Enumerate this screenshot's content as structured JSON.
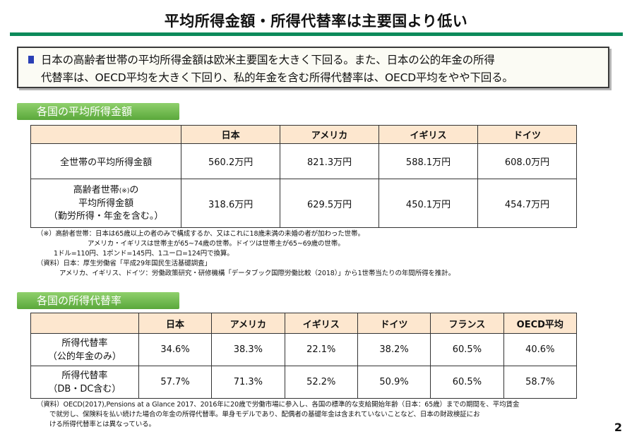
{
  "title": "平均所得金額・所得代替率は主要国より低い",
  "summary": {
    "line1": "日本の高齢者世帯の平均所得金額は欧米主要国を大きく下回る。また、日本の公的年金の所得",
    "line2": "代替率は、OECD平均を大きく下回り、私的年金を含む所得代替率は、OECD平均をやや下回る。"
  },
  "section1": {
    "label": "各国の平均所得金額",
    "columns": [
      "日本",
      "アメリカ",
      "イギリス",
      "ドイツ"
    ],
    "rows": [
      {
        "label": "全世帯の平均所得金額",
        "values": [
          "560.2万円",
          "821.3万円",
          "588.1万円",
          "608.0万円"
        ]
      },
      {
        "label_line1": "高齢者世帯",
        "label_mark": "(※)",
        "label_line1_suffix": "の",
        "label_line2": "平均所得金額",
        "label_line3": "（勤労所得・年金を含む。）",
        "values": [
          "318.6万円",
          "629.5万円",
          "450.1万円",
          "454.7万円"
        ]
      }
    ],
    "notes": [
      "（※）高齢者世帯：日本は65歳以上の者のみで構成するか、又はこれに18歳未満の未婚の者が加わった世帯。",
      "アメリカ・イギリスは世帯主が65~74歳の世帯。ドイツは世帯主が65~69歳の世帯。",
      "1ドル=110円、1ポンド=145円、1ユーロ=124円で換算。",
      "（資料）日本：厚生労働省「平成29年国民生活基礎調査」",
      "アメリカ、イギリス、ドイツ：労働政策研究・研修機構「データブック国際労働比較（2018）」から1世帯当たりの年間所得を推計。"
    ]
  },
  "section2": {
    "label": "各国の所得代替率",
    "columns": [
      "日本",
      "アメリカ",
      "イギリス",
      "ドイツ",
      "フランス",
      "OECD平均"
    ],
    "rows": [
      {
        "label_line1": "所得代替率",
        "label_line2": "（公的年金のみ）",
        "values": [
          "34.6%",
          "38.3%",
          "22.1%",
          "38.2%",
          "60.5%",
          "40.6%"
        ]
      },
      {
        "label_line1": "所得代替率",
        "label_line2": "（DB・DC含む）",
        "values": [
          "57.7%",
          "71.3%",
          "52.2%",
          "50.9%",
          "60.5%",
          "58.7%"
        ]
      }
    ],
    "notes": [
      "（資料）OECD(2017),Pensions at a Glance 2017、2016年に20歳で労働市場に参入し、各国の標準的な支給開始年齢（日本：65歳）までの期間を、平均賃金",
      "で就労し、保険料を払い続けた場合の年金の所得代替率。単身モデルであり、配偶者の基礎年金は含まれていないことなど、日本の財政検証にお",
      "ける所得代替率とは異なっている。"
    ]
  },
  "page_number": "2",
  "colors": {
    "title_rule": "#0b8a5a",
    "section_tab": "#6bb84a",
    "header_fill": "#fde7cf",
    "bullet": "#2a3fb5"
  }
}
